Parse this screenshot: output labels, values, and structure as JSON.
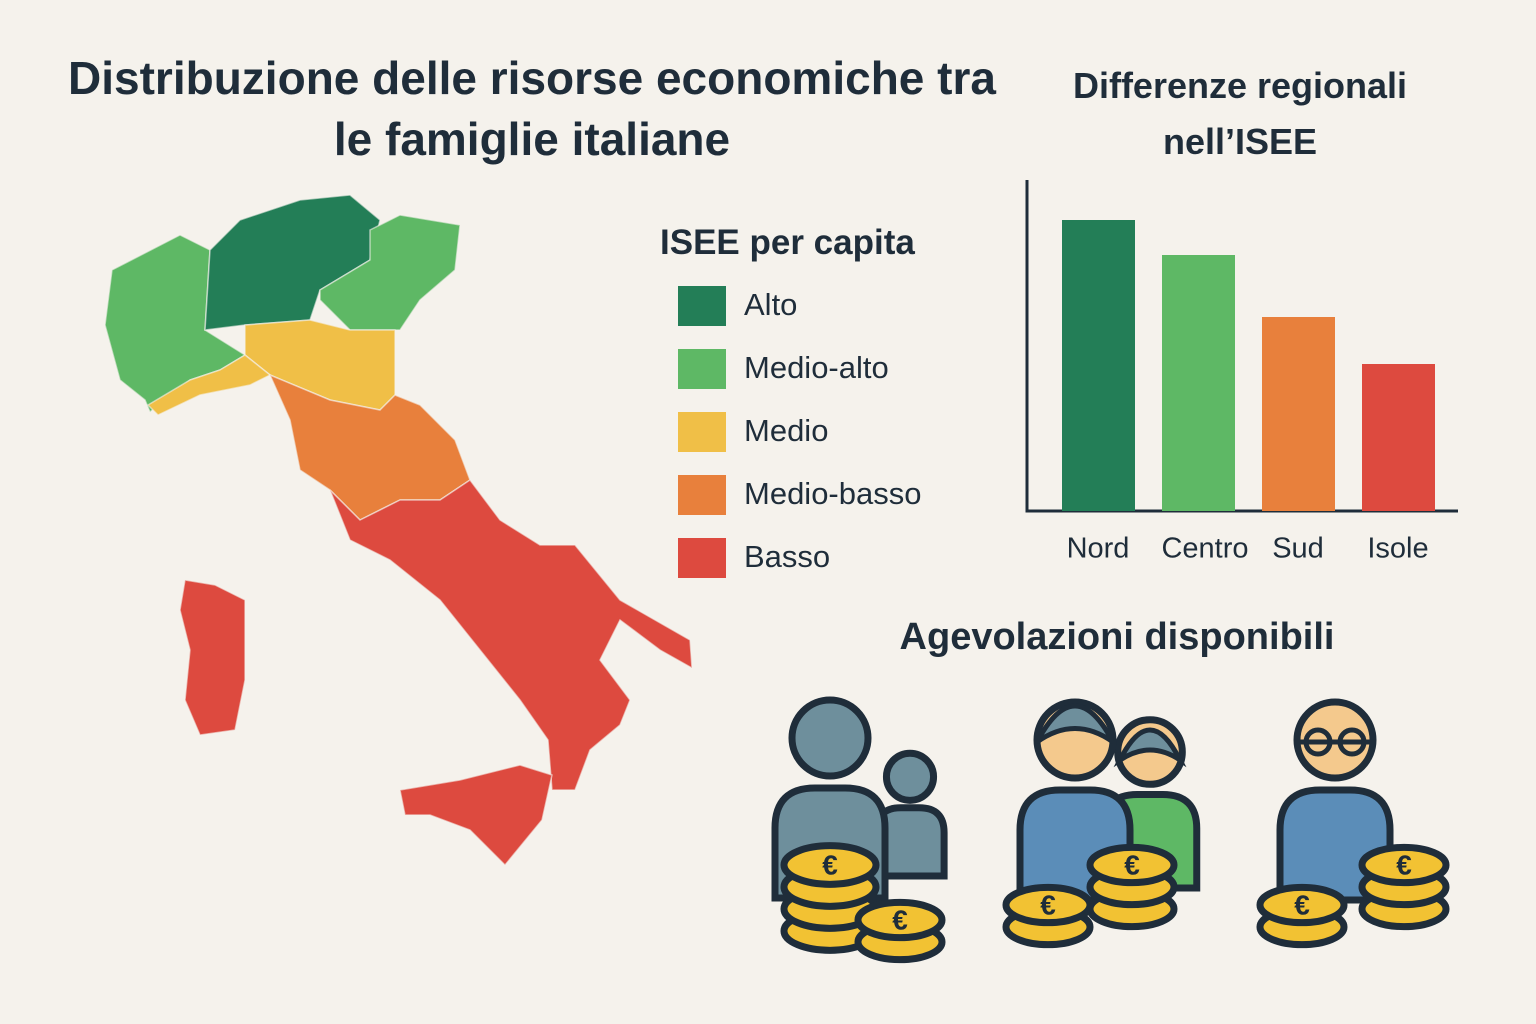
{
  "title": "Distribuzione delle risorse economiche tra le famiglie italiane",
  "legend": {
    "title": "ISEE per capita",
    "items": [
      {
        "label": "Alto",
        "color": "#237e57"
      },
      {
        "label": "Medio-alto",
        "color": "#5eb865"
      },
      {
        "label": "Medio",
        "color": "#f0bf47"
      },
      {
        "label": "Medio-basso",
        "color": "#e8803c"
      },
      {
        "label": "Basso",
        "color": "#dd4a3f"
      }
    ]
  },
  "chart_data": {
    "type": "bar",
    "title": "Differenze regionali nell’ISEE",
    "categories": [
      "Nord",
      "Centro",
      "Sud",
      "Isole"
    ],
    "values": [
      291,
      256,
      194,
      147
    ],
    "colors": [
      "#237e57",
      "#5eb865",
      "#e8803c",
      "#dd4a3f"
    ]
  },
  "benefits": {
    "title": "Agevolazioni disponibili",
    "coin_symbol": "€"
  }
}
